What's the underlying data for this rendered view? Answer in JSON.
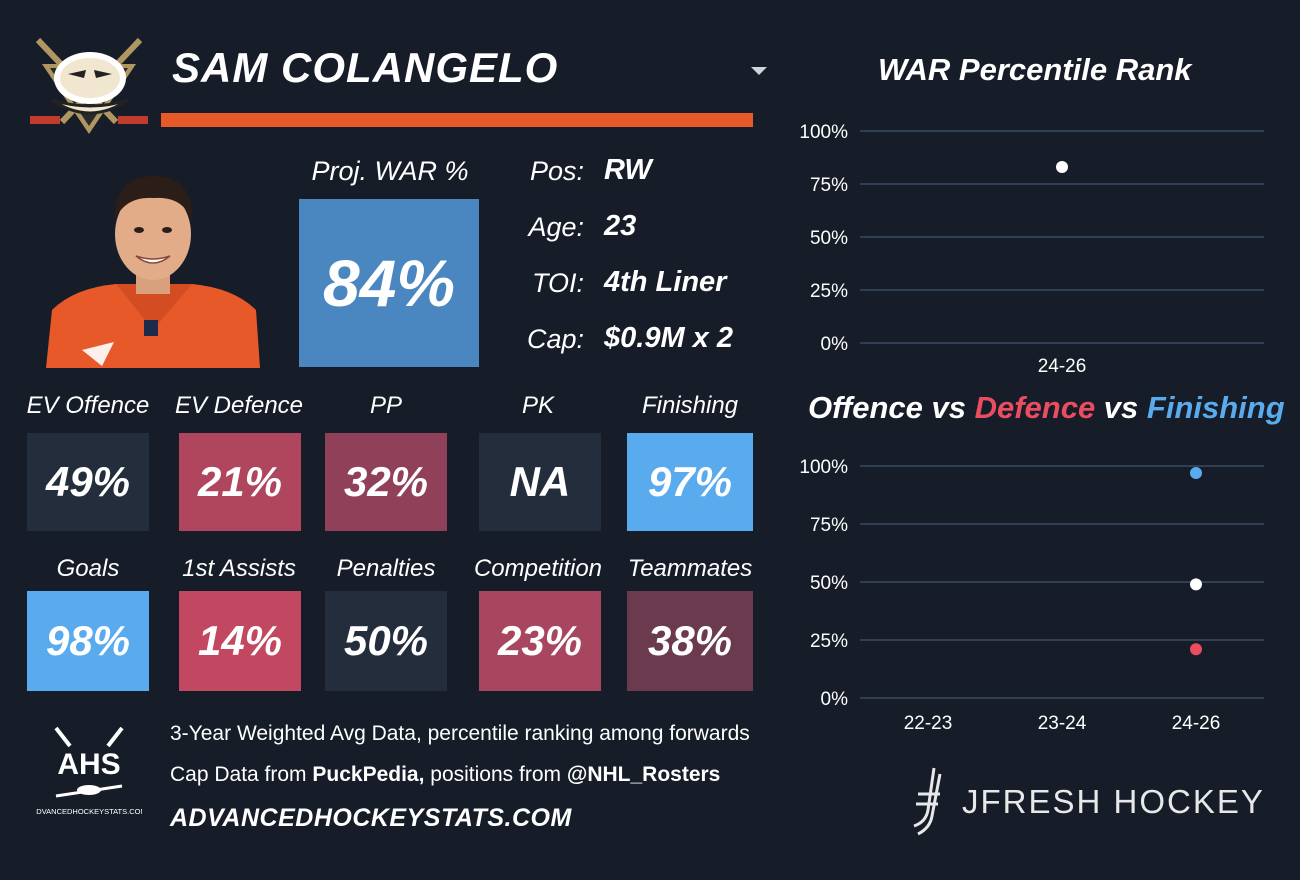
{
  "header": {
    "player_name": "SAM COLANGELO",
    "team_logo": "anaheim-ducks-logo",
    "accent_color": "#e8592a"
  },
  "war": {
    "label": "Proj. WAR %",
    "value": "84%",
    "color": "#4a86c0"
  },
  "info": [
    {
      "label": "Pos:",
      "value": "RW"
    },
    {
      "label": "Age:",
      "value": "23"
    },
    {
      "label": "TOI:",
      "value": "4th Liner"
    },
    {
      "label": "Cap:",
      "value": "$0.9M x 2"
    }
  ],
  "tiles_row1": [
    {
      "label": "EV Offence",
      "value": "49%",
      "color": "#232d3c"
    },
    {
      "label": "EV Defence",
      "value": "21%",
      "color": "#b0465d"
    },
    {
      "label": "PP",
      "value": "32%",
      "color": "#904058"
    },
    {
      "label": "PK",
      "value": "NA",
      "color": "#232d3c"
    },
    {
      "label": "Finishing",
      "value": "97%",
      "color": "#5aabee"
    }
  ],
  "tiles_row2": [
    {
      "label": "Goals",
      "value": "98%",
      "color": "#5aabee"
    },
    {
      "label": "1st Assists",
      "value": "14%",
      "color": "#c24861"
    },
    {
      "label": "Penalties",
      "value": "50%",
      "color": "#232d3c"
    },
    {
      "label": "Competition",
      "value": "23%",
      "color": "#a84660"
    },
    {
      "label": "Teammates",
      "value": "38%",
      "color": "#6c3a4e"
    }
  ],
  "footer": {
    "line1": "3-Year Weighted Avg Data, percentile ranking among forwards",
    "line2_pre": "Cap Data from ",
    "line2_b1": "PuckPedia,",
    "line2_mid": " positions from ",
    "line2_b2": "@NHL_Rosters",
    "site": "ADVANCEDHOCKEYSTATS.COM",
    "ahs_logo_text": "AHS",
    "ahs_logo_sub": "ADVANCEDHOCKEYSTATS.COM"
  },
  "brand": {
    "name": "JFRESH HOCKEY"
  },
  "chart_data": [
    {
      "type": "scatter",
      "title": "WAR Percentile Rank",
      "categories": [
        "24-26"
      ],
      "series": [
        {
          "values": [
            83
          ],
          "color": "#ffffff"
        }
      ],
      "ylim": [
        0,
        100
      ],
      "yticks": [
        "0%",
        "25%",
        "50%",
        "75%",
        "100%"
      ],
      "grid": true
    },
    {
      "type": "scatter",
      "title": "Offence vs Defence vs Finishing",
      "title_parts": [
        {
          "text": "Offence",
          "color": "#ffffff"
        },
        {
          "text": " vs ",
          "color": "#ffffff"
        },
        {
          "text": "Defence",
          "color": "#ec4c60"
        },
        {
          "text": " vs ",
          "color": "#ffffff"
        },
        {
          "text": "Finishing",
          "color": "#5aabee"
        }
      ],
      "categories": [
        "22-23",
        "23-24",
        "24-26"
      ],
      "series": [
        {
          "name": "Offence",
          "values": [
            null,
            null,
            49
          ],
          "color": "#ffffff"
        },
        {
          "name": "Defence",
          "values": [
            null,
            null,
            21
          ],
          "color": "#ec4c60"
        },
        {
          "name": "Finishing",
          "values": [
            null,
            null,
            97
          ],
          "color": "#5aabee"
        }
      ],
      "ylim": [
        0,
        100
      ],
      "yticks": [
        "0%",
        "25%",
        "50%",
        "75%",
        "100%"
      ],
      "grid": true
    }
  ]
}
